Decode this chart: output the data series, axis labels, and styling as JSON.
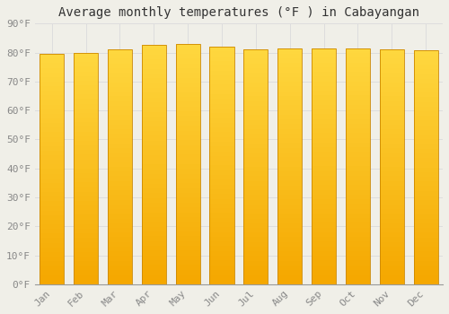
{
  "title": "Average monthly temperatures (°F ) in Cabayangan",
  "months": [
    "Jan",
    "Feb",
    "Mar",
    "Apr",
    "May",
    "Jun",
    "Jul",
    "Aug",
    "Sep",
    "Oct",
    "Nov",
    "Dec"
  ],
  "values": [
    79.5,
    79.9,
    81.1,
    82.6,
    82.9,
    82.0,
    81.1,
    81.3,
    81.5,
    81.5,
    81.1,
    80.7
  ],
  "ylim": [
    0,
    90
  ],
  "yticks": [
    0,
    10,
    20,
    30,
    40,
    50,
    60,
    70,
    80,
    90
  ],
  "ytick_labels": [
    "0°F",
    "10°F",
    "20°F",
    "30°F",
    "40°F",
    "50°F",
    "60°F",
    "70°F",
    "80°F",
    "90°F"
  ],
  "bar_color_bottom": "#F5A800",
  "bar_color_top": "#FFD840",
  "bar_edge_color": "#CC8800",
  "background_color": "#F0EFE8",
  "grid_color": "#DDDDDD",
  "title_fontsize": 10,
  "tick_fontsize": 8,
  "bar_width": 0.72
}
